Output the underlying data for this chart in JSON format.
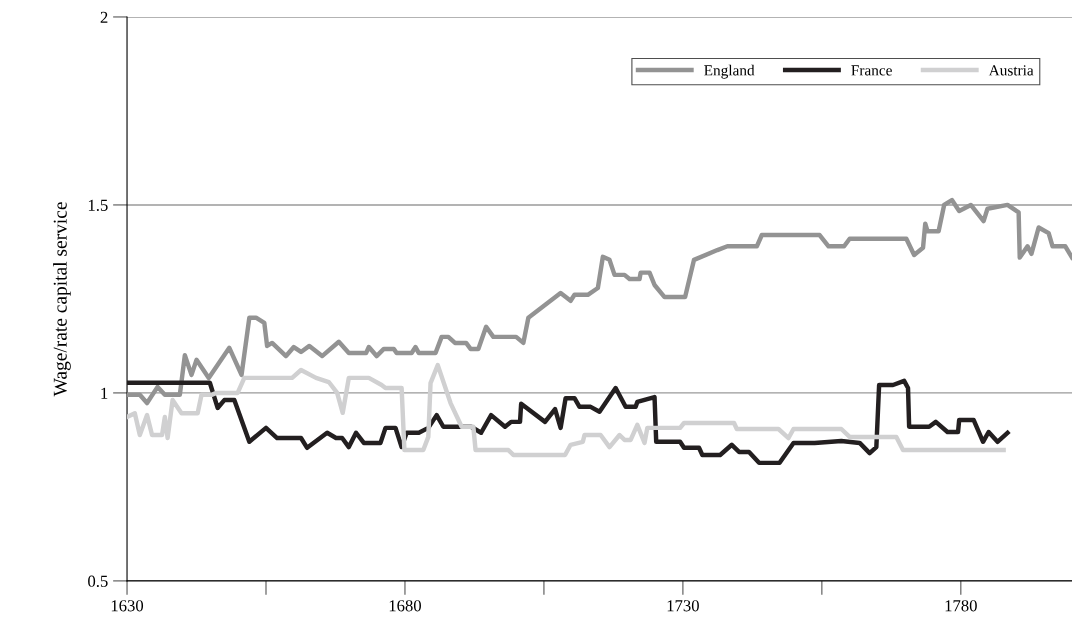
{
  "chart_data": {
    "type": "line",
    "ylabel": "Wage/rate capital service",
    "xlim": [
      1630,
      1800
    ],
    "xticks": [
      1630,
      {
        "value": 1655,
        "label": null
      },
      1680,
      {
        "value": 1705,
        "label": null
      },
      1730,
      {
        "value": 1755,
        "label": null
      },
      1780
    ],
    "ylim": [
      0.5,
      2
    ],
    "yticks": [
      0.5,
      1,
      1.5,
      2
    ],
    "grid": "y",
    "legend": "top right",
    "marker": "none",
    "line_style": "solid",
    "series": [
      {
        "name": "England",
        "color": "#939393",
        "x": [
          1630,
          1632.3,
          1633.6,
          1635.5,
          1636.8,
          1639.5,
          1640.4,
          1641.6,
          1642.5,
          1644.7,
          1648.4,
          1650.6,
          1652,
          1653.2,
          1654.7,
          1655.2,
          1656.1,
          1658.6,
          1660,
          1661.3,
          1662.8,
          1665.1,
          1668.1,
          1669.9,
          1673,
          1673.5,
          1674.9,
          1676.2,
          1678,
          1678.5,
          1681.2,
          1681.9,
          1682.5,
          1685.5,
          1686.6,
          1687.8,
          1689,
          1691,
          1691.8,
          1693.2,
          1694.6,
          1695.9,
          1700,
          1701.3,
          1702.2,
          1708,
          1709.8,
          1710.5,
          1712.9,
          1714.7,
          1715.6,
          1716.8,
          1717.7,
          1719.5,
          1720.4,
          1722.2,
          1722.4,
          1724,
          1724.9,
          1726.7,
          1730.4,
          1732,
          1736.2,
          1738,
          1743.3,
          1744.2,
          1754.6,
          1756.2,
          1759,
          1760,
          1770.2,
          1771.6,
          1773.2,
          1773.6,
          1774,
          1776,
          1777,
          1778.4,
          1779.7,
          1781.8,
          1784.1,
          1784.8,
          1788.4,
          1790.4,
          1790.6,
          1792,
          1792.7,
          1794,
          1795.8,
          1796.5,
          1798.8,
          1800
        ],
        "values": [
          0.995,
          0.995,
          0.973,
          1.016,
          0.995,
          0.995,
          1.1,
          1.048,
          1.088,
          1.04,
          1.12,
          1.048,
          1.2,
          1.2,
          1.186,
          1.125,
          1.133,
          1.098,
          1.122,
          1.109,
          1.125,
          1.098,
          1.136,
          1.106,
          1.106,
          1.122,
          1.098,
          1.117,
          1.117,
          1.106,
          1.106,
          1.122,
          1.106,
          1.106,
          1.149,
          1.149,
          1.133,
          1.133,
          1.117,
          1.117,
          1.176,
          1.149,
          1.149,
          1.133,
          1.2,
          1.266,
          1.245,
          1.261,
          1.261,
          1.279,
          1.362,
          1.354,
          1.314,
          1.314,
          1.303,
          1.303,
          1.32,
          1.32,
          1.287,
          1.255,
          1.255,
          1.354,
          1.38,
          1.39,
          1.39,
          1.42,
          1.42,
          1.39,
          1.39,
          1.41,
          1.41,
          1.367,
          1.386,
          1.45,
          1.43,
          1.43,
          1.5,
          1.513,
          1.484,
          1.5,
          1.457,
          1.49,
          1.5,
          1.48,
          1.36,
          1.39,
          1.37,
          1.44,
          1.425,
          1.39,
          1.39,
          1.36
        ]
      },
      {
        "name": "France",
        "color": "#231f20",
        "x": [
          1630,
          1644.9,
          1646.3,
          1647.5,
          1649.3,
          1652,
          1655,
          1657,
          1661.3,
          1662.4,
          1666,
          1667.6,
          1668.7,
          1669.9,
          1671.2,
          1672.6,
          1675.6,
          1676.5,
          1678.3,
          1679.4,
          1680.3,
          1682.5,
          1684.2,
          1685.7,
          1686.9,
          1691.9,
          1693.7,
          1695.5,
          1698,
          1699.1,
          1700.7,
          1700.9,
          1705.2,
          1707,
          1708,
          1708.9,
          1710.5,
          1711.4,
          1713.4,
          1715,
          1717.9,
          1719.7,
          1721.5,
          1721.8,
          1724.9,
          1725.2,
          1729.5,
          1730.2,
          1732.9,
          1733.5,
          1736.7,
          1738.8,
          1740.1,
          1741.9,
          1743.7,
          1747.4,
          1749.9,
          1753.7,
          1758.5,
          1761.8,
          1763.6,
          1764.8,
          1765.3,
          1767.8,
          1769.8,
          1770.5,
          1770.7,
          1774.3,
          1775.5,
          1777.6,
          1779.5,
          1779.7,
          1782.3,
          1784,
          1785,
          1786.6,
          1788.4
        ],
        "values": [
          1.027,
          1.027,
          0.96,
          0.981,
          0.981,
          0.87,
          0.907,
          0.88,
          0.88,
          0.854,
          0.894,
          0.88,
          0.88,
          0.856,
          0.894,
          0.867,
          0.867,
          0.907,
          0.907,
          0.856,
          0.894,
          0.894,
          0.907,
          0.941,
          0.91,
          0.91,
          0.894,
          0.941,
          0.91,
          0.923,
          0.923,
          0.971,
          0.923,
          0.957,
          0.907,
          0.986,
          0.986,
          0.963,
          0.963,
          0.95,
          1.013,
          0.963,
          0.963,
          0.976,
          0.989,
          0.87,
          0.87,
          0.854,
          0.854,
          0.835,
          0.835,
          0.862,
          0.843,
          0.843,
          0.814,
          0.814,
          0.867,
          0.867,
          0.872,
          0.867,
          0.84,
          0.856,
          1.021,
          1.021,
          1.032,
          1.013,
          0.91,
          0.91,
          0.923,
          0.896,
          0.896,
          0.928,
          0.928,
          0.87,
          0.896,
          0.87,
          0.894
        ]
      },
      {
        "name": "Austria",
        "color": "#d0d0d1",
        "x": [
          1630,
          1631.4,
          1632.3,
          1633.6,
          1634.5,
          1636.3,
          1636.8,
          1637.3,
          1638.2,
          1639.8,
          1642.7,
          1643.4,
          1645.2,
          1646.1,
          1649.9,
          1651.1,
          1659.7,
          1661.3,
          1664,
          1666.3,
          1667.8,
          1668.8,
          1669.9,
          1673.5,
          1675.8,
          1676.5,
          1679.4,
          1679.9,
          1683.3,
          1684.2,
          1684.6,
          1685.9,
          1688.2,
          1690.2,
          1692.3,
          1692.7,
          1698.6,
          1699.5,
          1708.8,
          1709.8,
          1712,
          1712.3,
          1715.2,
          1716.8,
          1718.6,
          1719.5,
          1720.6,
          1721.8,
          1723.1,
          1723.6,
          1729.5,
          1730.2,
          1739.2,
          1739.7,
          1747.2,
          1749,
          1749.9,
          1758.5,
          1760,
          1768.4,
          1769.6,
          1787.7
        ],
        "values": [
          0.936,
          0.946,
          0.888,
          0.941,
          0.888,
          0.888,
          0.936,
          0.88,
          0.981,
          0.946,
          0.946,
          0.995,
          0.995,
          1.0,
          1.0,
          1.04,
          1.04,
          1.061,
          1.04,
          1.029,
          1.0,
          0.947,
          1.04,
          1.04,
          1.021,
          1.013,
          1.013,
          0.848,
          0.848,
          0.883,
          1.026,
          1.074,
          0.973,
          0.91,
          0.91,
          0.848,
          0.848,
          0.835,
          0.835,
          0.862,
          0.87,
          0.888,
          0.888,
          0.856,
          0.888,
          0.875,
          0.875,
          0.915,
          0.867,
          0.907,
          0.907,
          0.92,
          0.92,
          0.904,
          0.904,
          0.88,
          0.904,
          0.904,
          0.883,
          0.883,
          0.848,
          0.848
        ]
      }
    ]
  }
}
